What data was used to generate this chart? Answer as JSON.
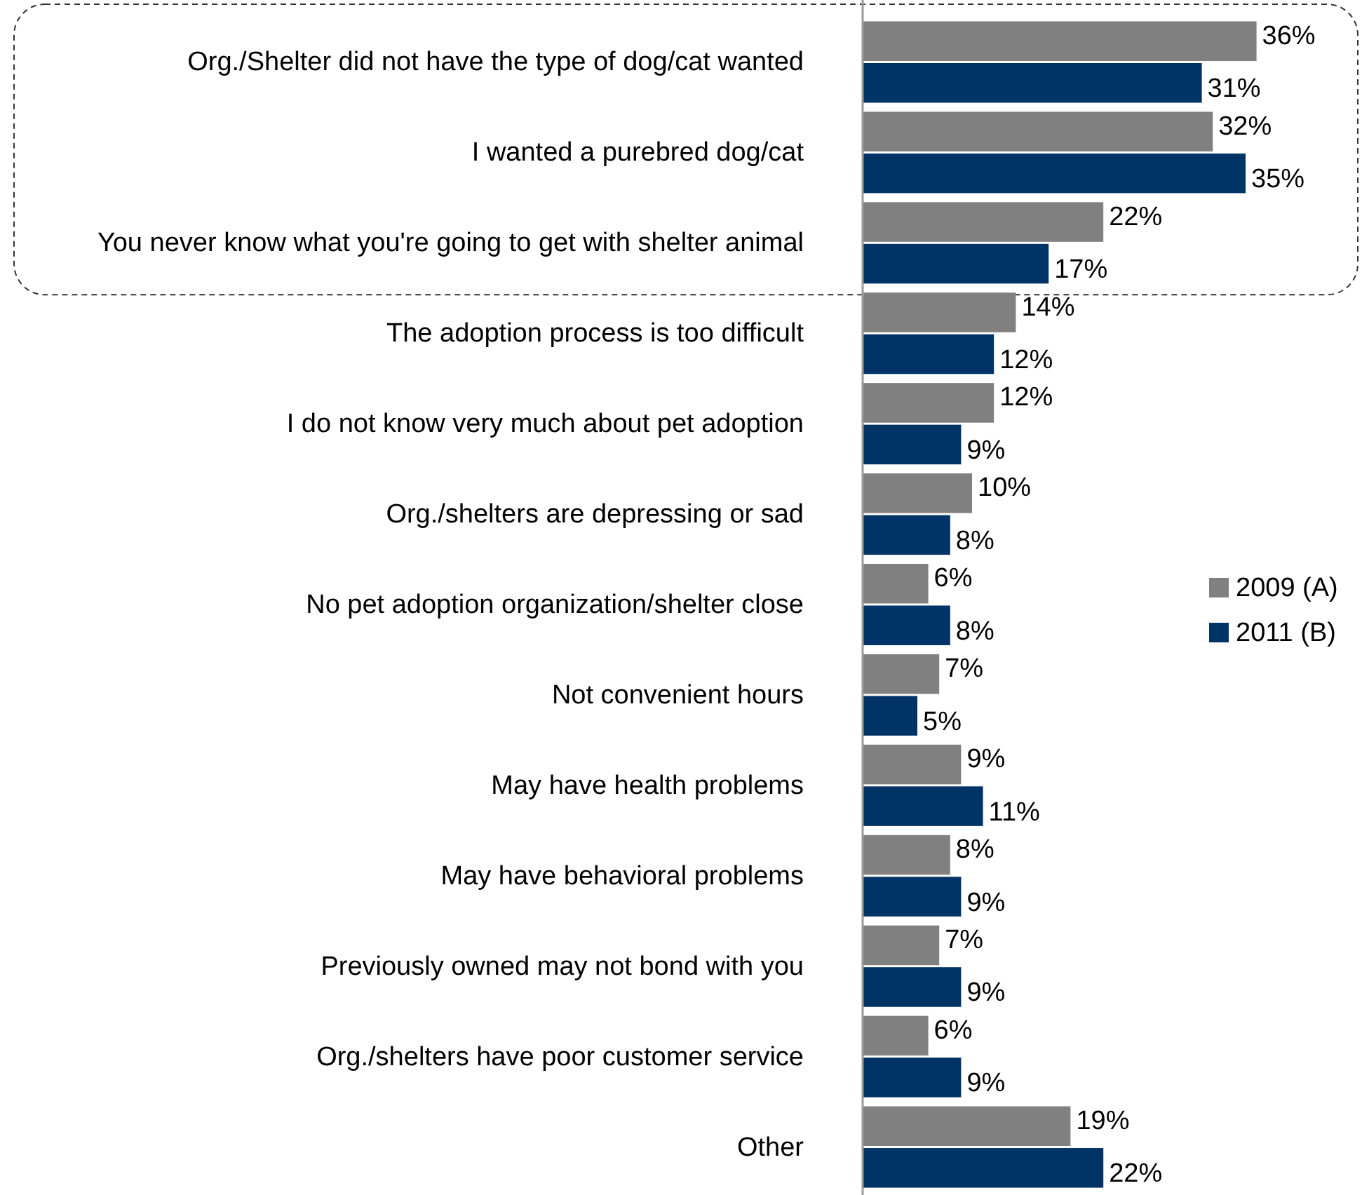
{
  "chart_data": {
    "type": "bar",
    "orientation": "horizontal",
    "tick_labels": "y",
    "legend": "right",
    "categories": [
      "Org./Shelter did not have the type of dog/cat wanted",
      "I wanted a purebred dog/cat",
      "You never know what you're going to get with shelter animal",
      "The adoption process is too difficult",
      "I do not know very much about pet adoption",
      "Org./shelters are depressing or sad",
      "No pet adoption organization/shelter close",
      "Not convenient hours",
      "May  have health problems",
      "May have behavioral problems",
      "Previously owned may not bond with you",
      "Org./shelters have poor customer service",
      "Other"
    ],
    "series": [
      {
        "name": "2009 (A)",
        "color": "#808080",
        "values": [
          36,
          32,
          22,
          14,
          12,
          10,
          6,
          7,
          9,
          8,
          7,
          6,
          19
        ],
        "value_labels": [
          "36%",
          "32%",
          "22%",
          "14%",
          "12%",
          "10%",
          "6%",
          "7%",
          "9%",
          "8%",
          "7%",
          "6%",
          "19%"
        ]
      },
      {
        "name": "2011 (B)",
        "color": "#003366",
        "values": [
          31,
          35,
          17,
          12,
          9,
          8,
          8,
          5,
          11,
          9,
          9,
          9,
          22
        ],
        "value_labels": [
          "31%",
          "35%",
          "17%",
          "12%",
          "9%",
          "8%",
          "8%",
          "5%",
          "11%",
          "9%",
          "9%",
          "9%",
          "22%"
        ]
      }
    ]
  }
}
